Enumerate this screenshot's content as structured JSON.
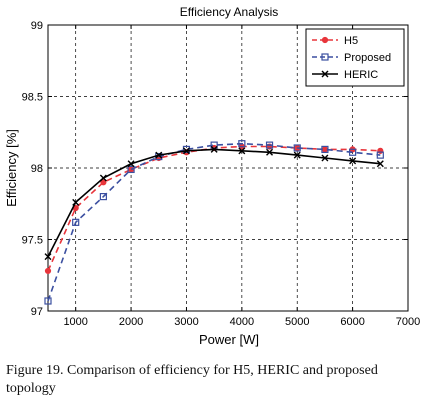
{
  "chart_data": {
    "type": "line",
    "title": "Efficiency Analysis",
    "xlabel": "Power [W]",
    "ylabel": "Efficiency [%]",
    "xlim": [
      500,
      7000
    ],
    "ylim": [
      97,
      99
    ],
    "xticks": [
      1000,
      2000,
      3000,
      4000,
      5000,
      6000,
      7000
    ],
    "yticks": [
      97,
      97.5,
      98,
      98.5,
      99
    ],
    "grid": true,
    "legend_position": "top-right",
    "series": [
      {
        "name": "H5",
        "color": "#e8353b",
        "line": "dashed",
        "marker": "circle",
        "x": [
          500,
          1000,
          1500,
          2000,
          2500,
          3000,
          3500,
          4000,
          4500,
          5000,
          5500,
          6000,
          6500
        ],
        "y": [
          97.28,
          97.72,
          97.9,
          97.99,
          98.07,
          98.11,
          98.14,
          98.15,
          98.15,
          98.14,
          98.13,
          98.13,
          98.12
        ]
      },
      {
        "name": "Proposed",
        "color": "#3b4fa0",
        "line": "dashed",
        "marker": "square",
        "x": [
          500,
          1000,
          1500,
          2000,
          2500,
          3000,
          3500,
          4000,
          4500,
          5000,
          5500,
          6000,
          6500
        ],
        "y": [
          97.07,
          97.62,
          97.8,
          97.99,
          98.08,
          98.13,
          98.16,
          98.17,
          98.16,
          98.14,
          98.13,
          98.11,
          98.09
        ]
      },
      {
        "name": "HERIC",
        "color": "#000000",
        "line": "solid",
        "marker": "x",
        "x": [
          500,
          1000,
          1500,
          2000,
          2500,
          3000,
          3500,
          4000,
          4500,
          5000,
          5500,
          6000,
          6500
        ],
        "y": [
          97.38,
          97.76,
          97.93,
          98.03,
          98.09,
          98.12,
          98.13,
          98.12,
          98.11,
          98.09,
          98.07,
          98.05,
          98.03
        ]
      }
    ]
  },
  "caption": "Figure 19.  Comparison of efficiency for H5, HERIC and proposed topology"
}
